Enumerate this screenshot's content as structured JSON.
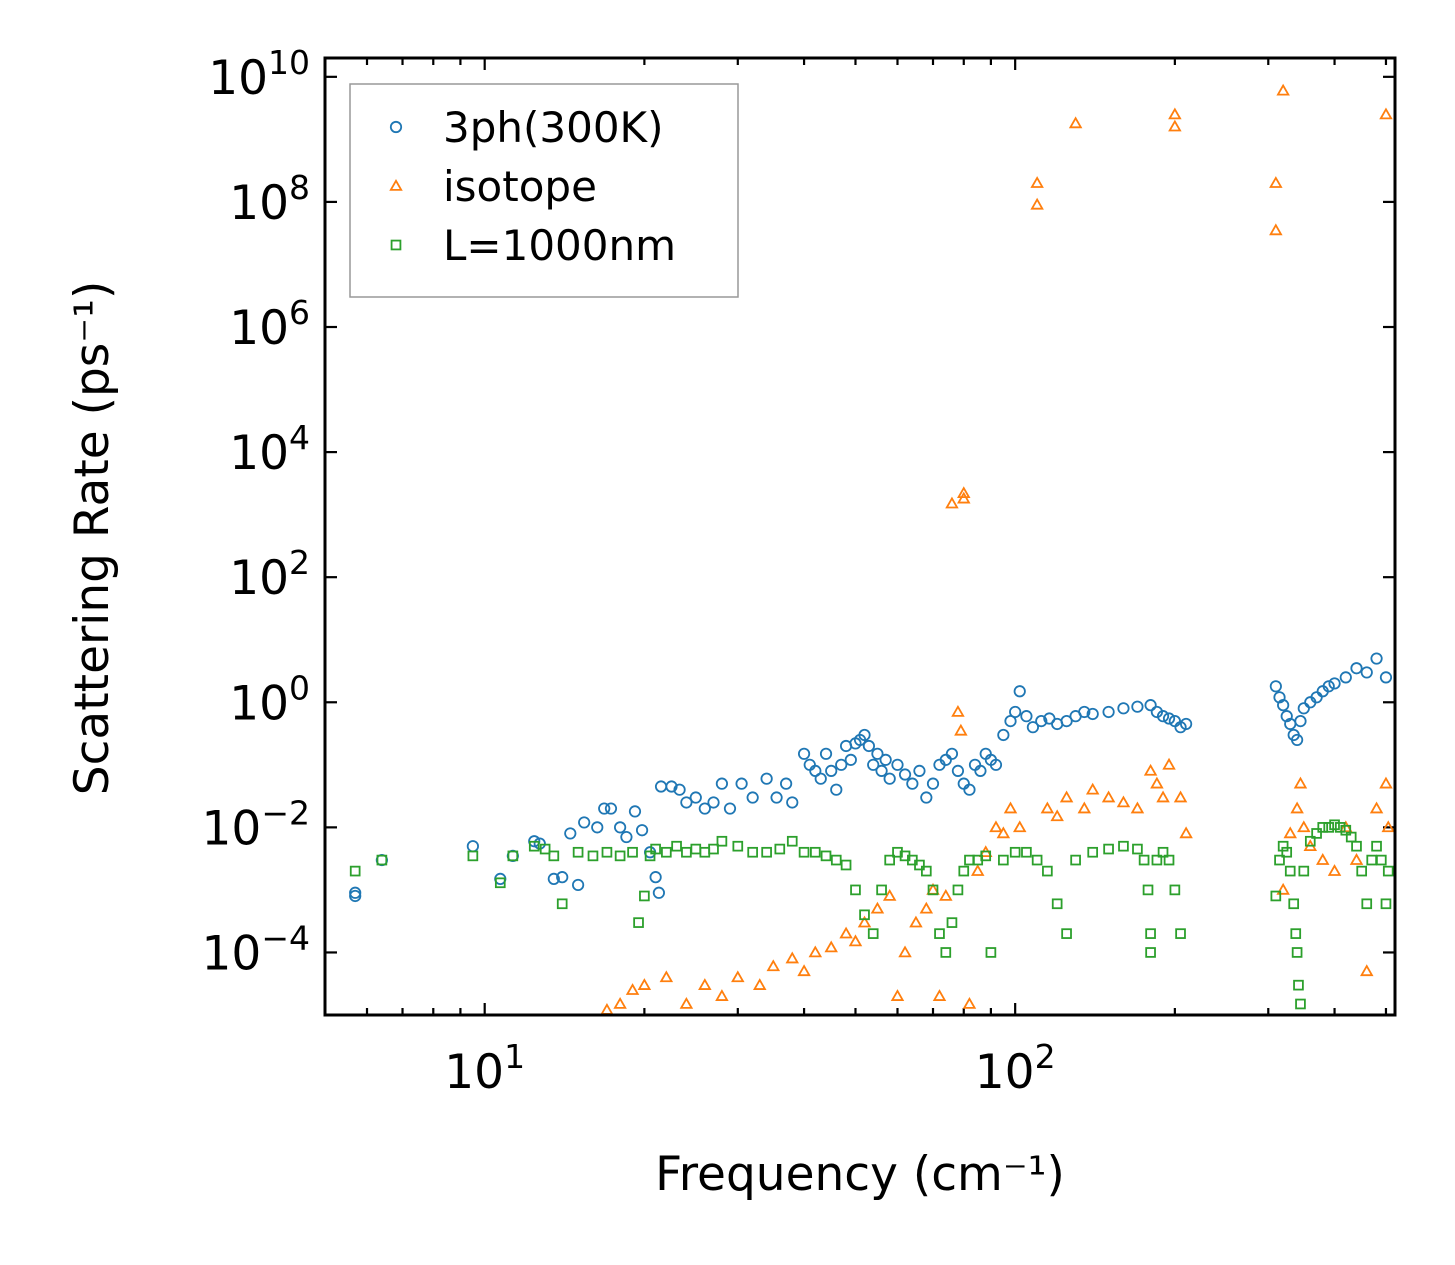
{
  "chart_data": {
    "type": "scatter",
    "title": "",
    "xlabel": "Frequency (cm⁻¹)",
    "ylabel": "Scattering Rate (ps⁻¹)",
    "xscale": "log",
    "yscale": "log",
    "xlim": [
      5.0,
      520
    ],
    "ylim": [
      1e-05,
      20000000000.0
    ],
    "x_ticks": [
      {
        "value": 10,
        "base": "10",
        "exp": "1"
      },
      {
        "value": 100,
        "base": "10",
        "exp": "2"
      }
    ],
    "y_ticks": [
      {
        "value": 0.0001,
        "base": "10",
        "exp": "−4"
      },
      {
        "value": 0.01,
        "base": "10",
        "exp": "−2"
      },
      {
        "value": 1,
        "base": "10",
        "exp": "0"
      },
      {
        "value": 100.0,
        "base": "10",
        "exp": "2"
      },
      {
        "value": 10000.0,
        "base": "10",
        "exp": "4"
      },
      {
        "value": 1000000.0,
        "base": "10",
        "exp": "6"
      },
      {
        "value": 100000000.0,
        "base": "10",
        "exp": "8"
      },
      {
        "value": 10000000000.0,
        "base": "10",
        "exp": "10"
      }
    ],
    "legend_position": "top-left",
    "grid": false,
    "series": [
      {
        "name": "3ph(300K)",
        "marker": "circle",
        "color": "#1f77b4",
        "points": [
          [
            5.7,
            0.0009
          ],
          [
            5.7,
            0.0008
          ],
          [
            6.4,
            0.003
          ],
          [
            9.5,
            0.005
          ],
          [
            10.7,
            0.0015
          ],
          [
            11.3,
            0.0035
          ],
          [
            12.4,
            0.006
          ],
          [
            12.7,
            0.0055
          ],
          [
            13.5,
            0.0015
          ],
          [
            14.0,
            0.0016
          ],
          [
            14.5,
            0.008
          ],
          [
            15.0,
            0.0012
          ],
          [
            15.4,
            0.012
          ],
          [
            16.3,
            0.01
          ],
          [
            16.8,
            0.02
          ],
          [
            17.3,
            0.02
          ],
          [
            18.0,
            0.01
          ],
          [
            18.5,
            0.007
          ],
          [
            19.2,
            0.018
          ],
          [
            19.8,
            0.009
          ],
          [
            20.5,
            0.004
          ],
          [
            21.0,
            0.0016
          ],
          [
            21.3,
            0.0009
          ],
          [
            21.5,
            0.045
          ],
          [
            22.5,
            0.045
          ],
          [
            23.3,
            0.04
          ],
          [
            24.0,
            0.025
          ],
          [
            25.0,
            0.03
          ],
          [
            26.0,
            0.02
          ],
          [
            27.0,
            0.025
          ],
          [
            28.0,
            0.05
          ],
          [
            29.0,
            0.02
          ],
          [
            30.5,
            0.05
          ],
          [
            32.0,
            0.03
          ],
          [
            34.0,
            0.06
          ],
          [
            35.5,
            0.03
          ],
          [
            37.0,
            0.05
          ],
          [
            38.0,
            0.025
          ],
          [
            40.0,
            0.15
          ],
          [
            41.0,
            0.1
          ],
          [
            42.0,
            0.08
          ],
          [
            43.0,
            0.06
          ],
          [
            44.0,
            0.15
          ],
          [
            45.0,
            0.08
          ],
          [
            46.0,
            0.04
          ],
          [
            47.0,
            0.1
          ],
          [
            48.0,
            0.2
          ],
          [
            49.0,
            0.12
          ],
          [
            50.0,
            0.22
          ],
          [
            51.0,
            0.25
          ],
          [
            52.0,
            0.3
          ],
          [
            53.0,
            0.2
          ],
          [
            54.0,
            0.1
          ],
          [
            55.0,
            0.15
          ],
          [
            56.0,
            0.08
          ],
          [
            57.0,
            0.12
          ],
          [
            58.0,
            0.06
          ],
          [
            60.0,
            0.1
          ],
          [
            62.0,
            0.07
          ],
          [
            64.0,
            0.05
          ],
          [
            66.0,
            0.08
          ],
          [
            68.0,
            0.03
          ],
          [
            70.0,
            0.05
          ],
          [
            72.0,
            0.1
          ],
          [
            74.0,
            0.12
          ],
          [
            76.0,
            0.15
          ],
          [
            78.0,
            0.08
          ],
          [
            80.0,
            0.05
          ],
          [
            82.0,
            0.04
          ],
          [
            84.0,
            0.1
          ],
          [
            86.0,
            0.08
          ],
          [
            88.0,
            0.15
          ],
          [
            90.0,
            0.12
          ],
          [
            92.0,
            0.1
          ],
          [
            95.0,
            0.3
          ],
          [
            98.0,
            0.5
          ],
          [
            100.0,
            0.7
          ],
          [
            102.0,
            1.5
          ],
          [
            105.0,
            0.6
          ],
          [
            108.0,
            0.4
          ],
          [
            112.0,
            0.5
          ],
          [
            116.0,
            0.55
          ],
          [
            120.0,
            0.45
          ],
          [
            125.0,
            0.5
          ],
          [
            130.0,
            0.6
          ],
          [
            135.0,
            0.7
          ],
          [
            140.0,
            0.65
          ],
          [
            150.0,
            0.7
          ],
          [
            160.0,
            0.8
          ],
          [
            170.0,
            0.85
          ],
          [
            180.0,
            0.9
          ],
          [
            185.0,
            0.7
          ],
          [
            190.0,
            0.6
          ],
          [
            195.0,
            0.55
          ],
          [
            200.0,
            0.5
          ],
          [
            205.0,
            0.4
          ],
          [
            210.0,
            0.45
          ],
          [
            310.0,
            1.8
          ],
          [
            315.0,
            1.2
          ],
          [
            320.0,
            0.9
          ],
          [
            325.0,
            0.6
          ],
          [
            330.0,
            0.45
          ],
          [
            335.0,
            0.3
          ],
          [
            340.0,
            0.25
          ],
          [
            345.0,
            0.5
          ],
          [
            350.0,
            0.8
          ],
          [
            360.0,
            1.0
          ],
          [
            370.0,
            1.2
          ],
          [
            380.0,
            1.5
          ],
          [
            390.0,
            1.8
          ],
          [
            400.0,
            2.0
          ],
          [
            420.0,
            2.5
          ],
          [
            440.0,
            3.5
          ],
          [
            460.0,
            3.0
          ],
          [
            480.0,
            5.0
          ],
          [
            500.0,
            2.5
          ]
        ]
      },
      {
        "name": "isotope",
        "marker": "triangle",
        "color": "#ff7f0e",
        "points": [
          [
            17.0,
            1.2e-05
          ],
          [
            18.0,
            1.5e-05
          ],
          [
            19.0,
            2.5e-05
          ],
          [
            20.0,
            3e-05
          ],
          [
            22.0,
            4e-05
          ],
          [
            24.0,
            1.5e-05
          ],
          [
            26.0,
            3e-05
          ],
          [
            28.0,
            2e-05
          ],
          [
            30.0,
            4e-05
          ],
          [
            33.0,
            3e-05
          ],
          [
            35.0,
            6e-05
          ],
          [
            38.0,
            8e-05
          ],
          [
            40.0,
            5e-05
          ],
          [
            42.0,
            0.0001
          ],
          [
            45.0,
            0.00012
          ],
          [
            48.0,
            0.0002
          ],
          [
            50.0,
            0.00015
          ],
          [
            52.0,
            0.0003
          ],
          [
            55.0,
            0.0005
          ],
          [
            58.0,
            0.0008
          ],
          [
            60.0,
            2e-05
          ],
          [
            62.0,
            0.0001
          ],
          [
            65.0,
            0.0003
          ],
          [
            68.0,
            0.0005
          ],
          [
            70.0,
            0.001
          ],
          [
            72.0,
            2e-05
          ],
          [
            74.0,
            0.0008
          ],
          [
            76.0,
            1500
          ],
          [
            80.0,
            1800
          ],
          [
            80.0,
            2200
          ],
          [
            78.0,
            0.7
          ],
          [
            79.0,
            0.35
          ],
          [
            82.0,
            1.5e-05
          ],
          [
            85.0,
            0.002
          ],
          [
            88.0,
            0.004
          ],
          [
            92.0,
            0.01
          ],
          [
            95.0,
            0.008
          ],
          [
            98.0,
            0.02
          ],
          [
            102.0,
            0.01
          ],
          [
            110.0,
            200000000.0
          ],
          [
            110.0,
            90000000.0
          ],
          [
            115.0,
            0.02
          ],
          [
            120.0,
            0.015
          ],
          [
            125.0,
            0.03
          ],
          [
            130.0,
            1800000000.0
          ],
          [
            135.0,
            0.02
          ],
          [
            140.0,
            0.04
          ],
          [
            150.0,
            0.03
          ],
          [
            160.0,
            0.025
          ],
          [
            170.0,
            0.02
          ],
          [
            180.0,
            0.08
          ],
          [
            185.0,
            0.05
          ],
          [
            190.0,
            0.03
          ],
          [
            195.0,
            0.1
          ],
          [
            200.0,
            2500000000.0
          ],
          [
            200.0,
            1600000000.0
          ],
          [
            205.0,
            0.03
          ],
          [
            210.0,
            0.008
          ],
          [
            310.0,
            200000000.0
          ],
          [
            310.0,
            35000000.0
          ],
          [
            320.0,
            6000000000.0
          ],
          [
            320.0,
            0.001
          ],
          [
            330.0,
            0.008
          ],
          [
            340.0,
            0.02
          ],
          [
            345.0,
            0.05
          ],
          [
            350.0,
            0.01
          ],
          [
            360.0,
            0.005
          ],
          [
            380.0,
            0.003
          ],
          [
            400.0,
            0.002
          ],
          [
            420.0,
            0.01
          ],
          [
            440.0,
            0.003
          ],
          [
            460.0,
            5e-05
          ],
          [
            480.0,
            0.02
          ],
          [
            500.0,
            2500000000.0
          ],
          [
            500.0,
            0.05
          ],
          [
            505.0,
            0.01
          ]
        ]
      },
      {
        "name": "L=1000nm",
        "marker": "square",
        "color": "#2ca02c",
        "points": [
          [
            5.7,
            0.002
          ],
          [
            6.4,
            0.003
          ],
          [
            9.5,
            0.0035
          ],
          [
            10.7,
            0.0013
          ],
          [
            11.3,
            0.0035
          ],
          [
            12.4,
            0.005
          ],
          [
            13.0,
            0.0045
          ],
          [
            13.5,
            0.0035
          ],
          [
            14.0,
            0.0006
          ],
          [
            15.0,
            0.004
          ],
          [
            16.0,
            0.0035
          ],
          [
            17.0,
            0.004
          ],
          [
            18.0,
            0.0035
          ],
          [
            19.0,
            0.004
          ],
          [
            19.5,
            0.0003
          ],
          [
            20.0,
            0.0008
          ],
          [
            20.5,
            0.0035
          ],
          [
            21.0,
            0.0045
          ],
          [
            22.0,
            0.004
          ],
          [
            23.0,
            0.005
          ],
          [
            24.0,
            0.004
          ],
          [
            25.0,
            0.0045
          ],
          [
            26.0,
            0.004
          ],
          [
            27.0,
            0.0045
          ],
          [
            28.0,
            0.006
          ],
          [
            30.0,
            0.005
          ],
          [
            32.0,
            0.004
          ],
          [
            34.0,
            0.004
          ],
          [
            36.0,
            0.0045
          ],
          [
            38.0,
            0.006
          ],
          [
            40.0,
            0.004
          ],
          [
            42.0,
            0.004
          ],
          [
            44.0,
            0.0035
          ],
          [
            46.0,
            0.003
          ],
          [
            48.0,
            0.0025
          ],
          [
            50.0,
            0.001
          ],
          [
            52.0,
            0.0004
          ],
          [
            54.0,
            0.0002
          ],
          [
            56.0,
            0.001
          ],
          [
            58.0,
            0.003
          ],
          [
            60.0,
            0.004
          ],
          [
            62.0,
            0.0035
          ],
          [
            64.0,
            0.003
          ],
          [
            66.0,
            0.0025
          ],
          [
            68.0,
            0.002
          ],
          [
            70.0,
            0.001
          ],
          [
            72.0,
            0.0002
          ],
          [
            74.0,
            0.0001
          ],
          [
            76.0,
            0.0003
          ],
          [
            78.0,
            0.001
          ],
          [
            80.0,
            0.002
          ],
          [
            82.0,
            0.003
          ],
          [
            85.0,
            0.003
          ],
          [
            88.0,
            0.0035
          ],
          [
            90.0,
            0.0001
          ],
          [
            95.0,
            0.003
          ],
          [
            100.0,
            0.004
          ],
          [
            105.0,
            0.004
          ],
          [
            110.0,
            0.003
          ],
          [
            115.0,
            0.002
          ],
          [
            120.0,
            0.0006
          ],
          [
            125.0,
            0.0002
          ],
          [
            130.0,
            0.003
          ],
          [
            140.0,
            0.004
          ],
          [
            150.0,
            0.0045
          ],
          [
            160.0,
            0.005
          ],
          [
            170.0,
            0.0045
          ],
          [
            175.0,
            0.003
          ],
          [
            178.0,
            0.001
          ],
          [
            180.0,
            0.0002
          ],
          [
            180.0,
            0.0001
          ],
          [
            185.0,
            0.003
          ],
          [
            190.0,
            0.004
          ],
          [
            195.0,
            0.003
          ],
          [
            200.0,
            0.001
          ],
          [
            205.0,
            0.0002
          ],
          [
            310.0,
            0.0008
          ],
          [
            315.0,
            0.003
          ],
          [
            320.0,
            0.005
          ],
          [
            325.0,
            0.004
          ],
          [
            330.0,
            0.002
          ],
          [
            335.0,
            0.0006
          ],
          [
            338.0,
            0.0002
          ],
          [
            340.0,
            0.0001
          ],
          [
            342.0,
            3e-05
          ],
          [
            345.0,
            1.5e-05
          ],
          [
            350.0,
            0.002
          ],
          [
            360.0,
            0.006
          ],
          [
            370.0,
            0.008
          ],
          [
            380.0,
            0.01
          ],
          [
            390.0,
            0.01
          ],
          [
            400.0,
            0.011
          ],
          [
            410.0,
            0.01
          ],
          [
            420.0,
            0.009
          ],
          [
            430.0,
            0.007
          ],
          [
            440.0,
            0.005
          ],
          [
            450.0,
            0.002
          ],
          [
            460.0,
            0.0006
          ],
          [
            470.0,
            0.003
          ],
          [
            480.0,
            0.005
          ],
          [
            490.0,
            0.003
          ],
          [
            500.0,
            0.0006
          ],
          [
            505.0,
            0.002
          ]
        ]
      }
    ]
  }
}
